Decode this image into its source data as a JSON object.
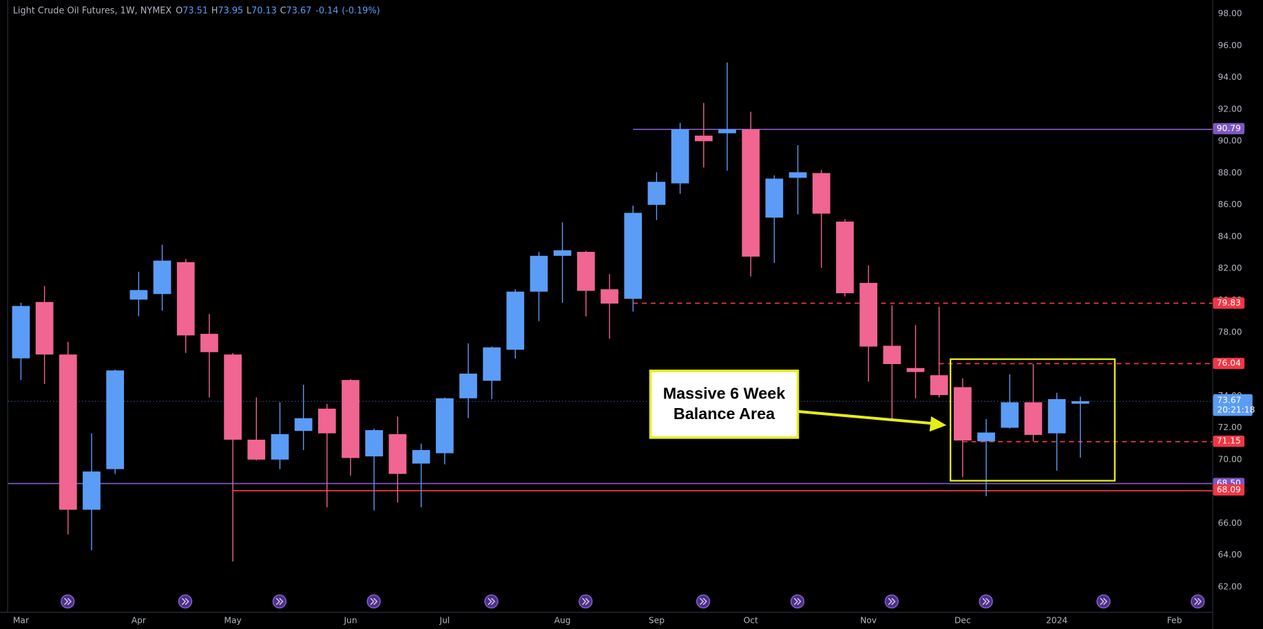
{
  "chart_data": {
    "type": "candlestick",
    "symbol": "Light Crude Oil Futures, 1W, NYMEX",
    "ohlc_prefixes": [
      "O",
      "H",
      "L",
      "C"
    ],
    "change": -0.14,
    "change_percent": "(-0.19%)",
    "countdown": "20:21:18",
    "up_color": "#5b9cf6",
    "down_color": "#f06591",
    "categories": [
      "Mar",
      null,
      null,
      null,
      null,
      "Apr",
      null,
      null,
      null,
      "May",
      null,
      null,
      null,
      null,
      "Jun",
      null,
      null,
      null,
      "Jul",
      null,
      null,
      null,
      null,
      "Aug",
      null,
      null,
      null,
      "Sep",
      null,
      null,
      null,
      "Oct",
      null,
      null,
      null,
      null,
      "Nov",
      null,
      null,
      null,
      "Dec",
      null,
      null,
      null,
      "2024",
      null,
      null,
      null,
      null,
      "Feb",
      null
    ],
    "open": [
      76.36,
      79.9,
      76.6,
      66.85,
      69.4,
      80.05,
      80.4,
      82.4,
      77.9,
      76.6,
      71.25,
      70.0,
      71.8,
      73.2,
      75.0,
      70.2,
      71.6,
      69.75,
      70.4,
      73.85,
      74.95,
      76.9,
      80.55,
      82.8,
      83.05,
      80.7,
      80.1,
      86.0,
      87.35,
      90.35,
      90.5,
      90.75,
      85.2,
      87.7,
      88.0,
      84.95,
      81.1,
      77.15,
      75.75,
      75.3,
      74.55,
      71.15,
      72.0,
      73.6,
      71.65,
      73.51,
      null,
      null,
      null,
      null,
      null
    ],
    "high": [
      79.85,
      80.9,
      77.4,
      71.65,
      75.65,
      81.8,
      83.5,
      82.6,
      79.15,
      76.7,
      73.9,
      73.6,
      74.7,
      73.5,
      75.05,
      71.95,
      72.7,
      71.0,
      73.9,
      77.3,
      77.1,
      80.7,
      83.05,
      84.9,
      83.1,
      81.65,
      85.95,
      88.05,
      91.15,
      92.4,
      94.95,
      91.85,
      87.85,
      89.75,
      88.2,
      85.1,
      82.2,
      79.7,
      78.45,
      79.6,
      75.1,
      72.55,
      75.35,
      76.0,
      74.2,
      73.95,
      null,
      null,
      null,
      null,
      null
    ],
    "low": [
      75.0,
      74.75,
      65.3,
      64.3,
      69.1,
      79.0,
      79.35,
      76.7,
      73.9,
      63.6,
      69.95,
      69.4,
      70.6,
      67.0,
      69.0,
      66.8,
      67.3,
      67.0,
      69.7,
      72.6,
      73.8,
      76.35,
      78.7,
      79.85,
      79.0,
      77.6,
      79.3,
      85.05,
      86.7,
      88.35,
      88.15,
      81.5,
      82.35,
      85.4,
      82.05,
      80.25,
      74.9,
      72.55,
      73.85,
      73.9,
      68.9,
      67.7,
      71.95,
      71.15,
      69.3,
      70.13,
      null,
      null,
      null,
      null,
      null
    ],
    "close": [
      79.65,
      76.6,
      66.85,
      69.25,
      75.6,
      80.65,
      82.5,
      77.8,
      76.75,
      71.25,
      70.0,
      71.6,
      72.6,
      71.65,
      70.1,
      71.85,
      69.1,
      70.6,
      73.85,
      75.4,
      77.05,
      80.55,
      82.8,
      83.15,
      80.6,
      79.8,
      85.5,
      87.45,
      90.75,
      90.0,
      90.75,
      82.75,
      87.65,
      88.05,
      85.45,
      80.45,
      77.1,
      76.0,
      75.5,
      74.05,
      71.2,
      71.7,
      73.6,
      71.55,
      73.8,
      73.67,
      null,
      null,
      null,
      null,
      null
    ],
    "ylim": [
      60.43,
      98.86
    ],
    "yticks": [
      {
        "value": 62,
        "label": "62.00"
      },
      {
        "value": 64,
        "label": "64.00"
      },
      {
        "value": 66,
        "label": "66.00"
      },
      {
        "value": 68,
        "label": "68.00"
      },
      {
        "value": 70,
        "label": "70.00"
      },
      {
        "value": 72,
        "label": "72.00"
      },
      {
        "value": 74,
        "label": "74.00"
      },
      {
        "value": 76,
        "label": "76.00"
      },
      {
        "value": 78,
        "label": "78.00"
      },
      {
        "value": 80,
        "label": "80.00"
      },
      {
        "value": 82,
        "label": "82.00"
      },
      {
        "value": 84,
        "label": "84.00"
      },
      {
        "value": 86,
        "label": "86.00"
      },
      {
        "value": 88,
        "label": "88.00"
      },
      {
        "value": 90,
        "label": "90.00"
      },
      {
        "value": 92,
        "label": "92.00"
      },
      {
        "value": 94,
        "label": "94.00"
      },
      {
        "value": 96,
        "label": "96.00"
      },
      {
        "value": 98,
        "label": "98.00"
      }
    ],
    "grid": false,
    "levels": [
      {
        "value": 90.79,
        "color": "#7e57c2",
        "style": "solid",
        "from": 26
      },
      {
        "value": 79.83,
        "color": "#f23645",
        "style": "dashed",
        "from": 26
      },
      {
        "value": 76.04,
        "color": "#f23645",
        "style": "dashed",
        "from": 39
      },
      {
        "value": 73.56,
        "color": "#7e57c2",
        "style": "none"
      },
      {
        "value": 71.15,
        "color": "#f23645",
        "style": "dashed",
        "from": 40
      },
      {
        "value": 68.5,
        "label": "68.50",
        "color": "#7e57c2",
        "style": "solid"
      },
      {
        "value": 68.09,
        "color": "#f23645",
        "style": "solid",
        "from": 9
      }
    ],
    "annotation": {
      "lines": [
        "Massive 6 Week",
        "Balance Area"
      ]
    }
  }
}
